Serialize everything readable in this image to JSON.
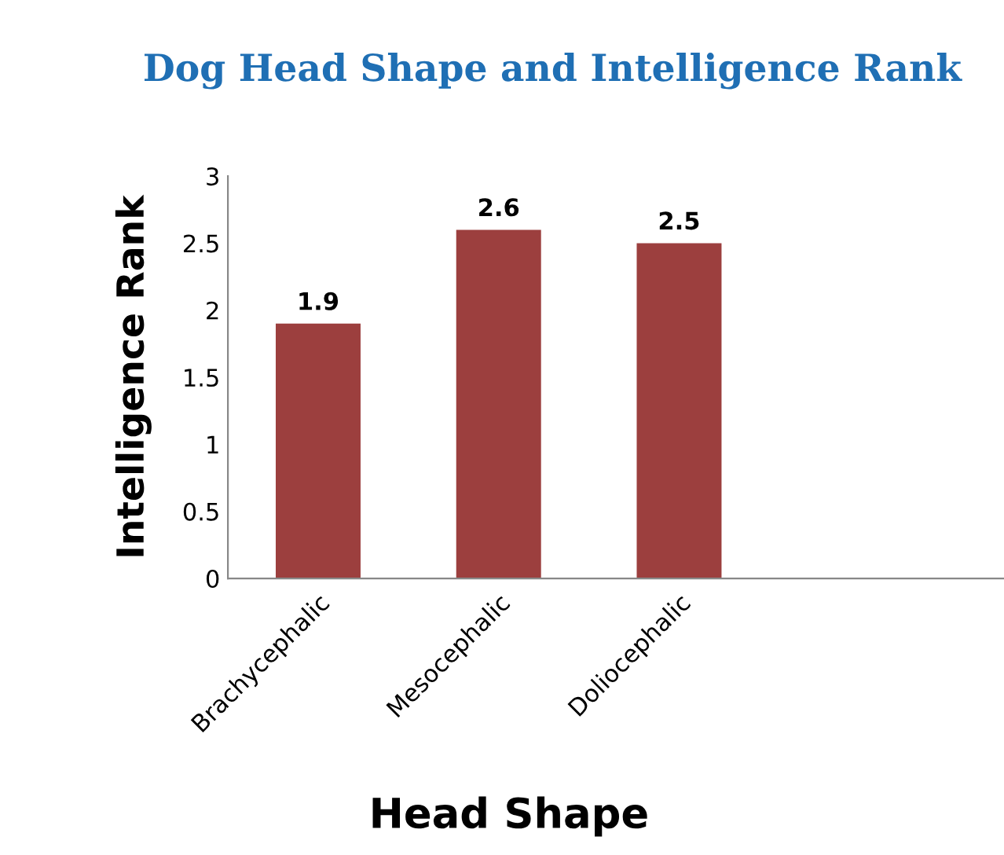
{
  "chart_data": {
    "type": "bar",
    "title": "Dog Head Shape and Intelligence Rank",
    "xlabel": "Head Shape",
    "ylabel": "Intelligence Rank",
    "categories": [
      "Brachycephalic",
      "Mesocephalic",
      "Doliocephalic"
    ],
    "values": [
      1.9,
      2.6,
      2.5
    ],
    "color": "#9c3f3e",
    "ylim": [
      0,
      3
    ],
    "yticks": [
      0,
      0.5,
      1,
      1.5,
      2,
      2.5,
      3
    ],
    "grid": false,
    "legend": false,
    "data_labels": true
  }
}
